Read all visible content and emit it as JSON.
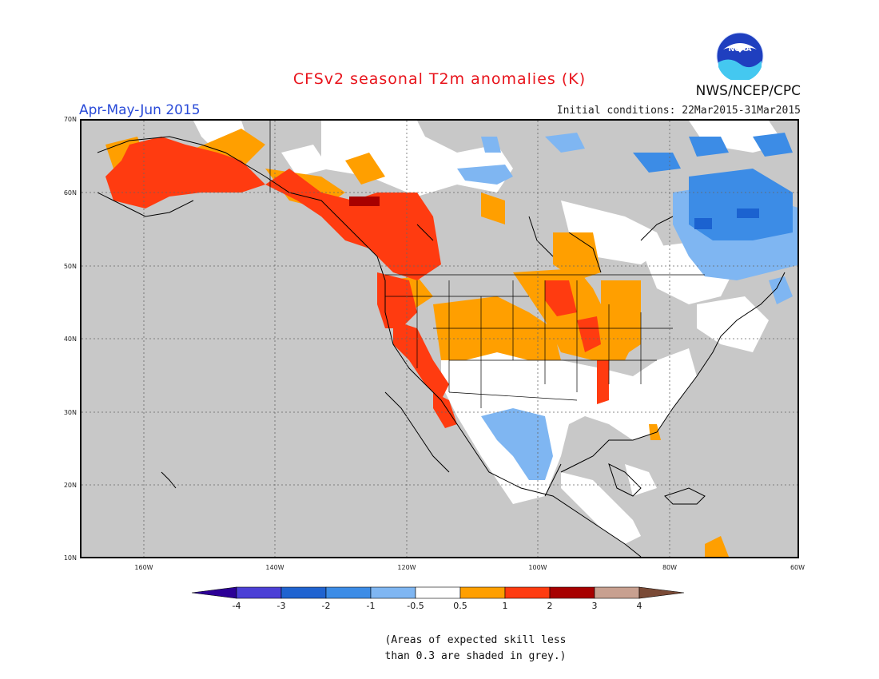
{
  "header": {
    "title": "CFSv2 seasonal T2m anomalies (K)",
    "period": "Apr-May-Jun 2015",
    "initial_conditions": "Initial conditions: 22Mar2015-31Mar2015",
    "agency": "NWS/NCEP/CPC",
    "logo_text": "NOAA"
  },
  "map": {
    "lat_labels": [
      "70N",
      "60N",
      "50N",
      "40N",
      "30N",
      "20N",
      "10N"
    ],
    "lon_labels": [
      "160W",
      "140W",
      "120W",
      "100W",
      "80W",
      "60W"
    ],
    "colors": {
      "grey_low_skill": "#c8c8c8",
      "neutral": "#ffffff",
      "warm_0_5_1": "#ff9f00",
      "warm_1_2": "#ff3b10",
      "warm_2_3": "#a70000",
      "cool_m1_m0_5": "#7fb6f2",
      "cool_m2_m1": "#3c8ce6",
      "cool_m3_m2": "#1b62d0"
    }
  },
  "colorbar": {
    "labels": [
      "-4",
      "-3",
      "-2",
      "-1",
      "-0.5",
      "0.5",
      "1",
      "2",
      "3",
      "4"
    ],
    "colors": [
      "#2c0096",
      "#4b3fd6",
      "#1f63d0",
      "#3c8ce6",
      "#7fb6f2",
      "#ffffff",
      "#ff9f00",
      "#ff3b10",
      "#a70000",
      "#c8a090",
      "#7a4a36"
    ]
  },
  "note": {
    "line1": "(Areas of expected skill less",
    "line2": "than 0.3 are shaded in grey.)"
  }
}
